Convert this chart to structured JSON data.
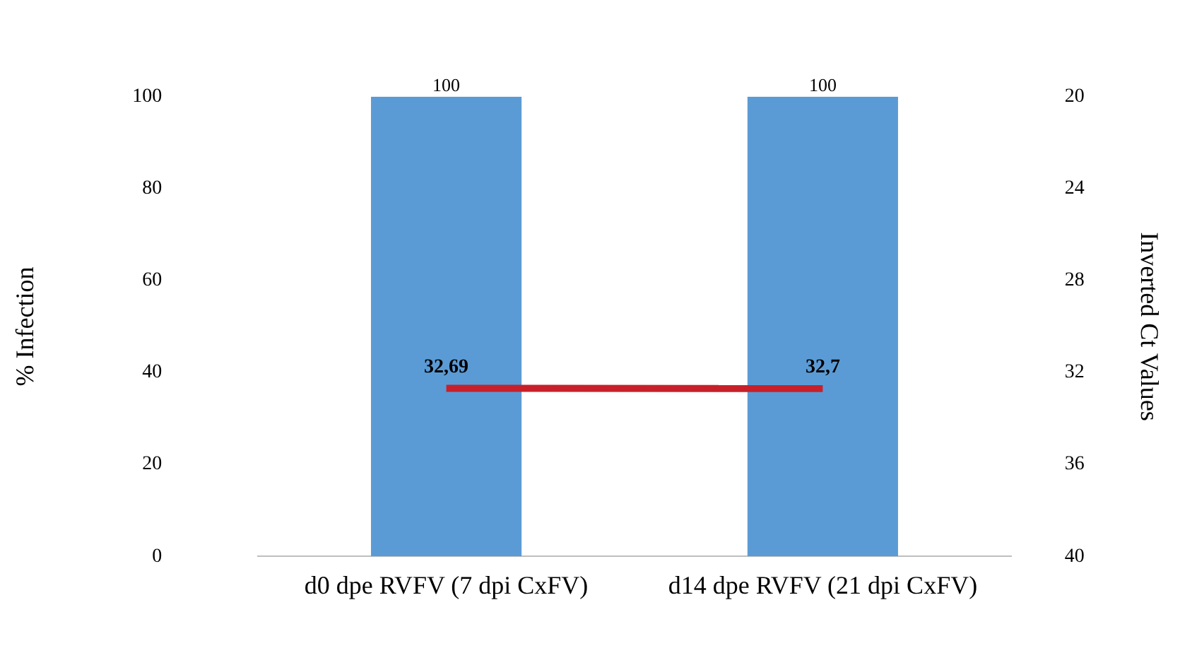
{
  "chart_data": {
    "type": "bar",
    "ylabel": "% Infection",
    "y2label": "Inverted Ct Values",
    "categories": [
      "d0 dpe RVFV (7 dpi CxFV)",
      "d14 dpe RVFV (21 dpi CxFV)"
    ],
    "series": [
      {
        "color": "#5b9bd5",
        "values": [
          100,
          100
        ],
        "value_labels": [
          "100",
          "100"
        ]
      },
      {
        "type": "line",
        "axis": "y2",
        "color": "#c8202a",
        "values": [
          32.69,
          32.7
        ],
        "value_labels": [
          "32,69",
          "32,7"
        ]
      }
    ],
    "ylim": [
      0,
      100
    ],
    "yticks": [
      0,
      20,
      40,
      60,
      80,
      100
    ],
    "y2lim": [
      40,
      20
    ],
    "y2ticks": [
      40,
      36,
      32,
      28,
      24,
      20
    ],
    "grid": false,
    "legend": false,
    "marker": "none"
  }
}
